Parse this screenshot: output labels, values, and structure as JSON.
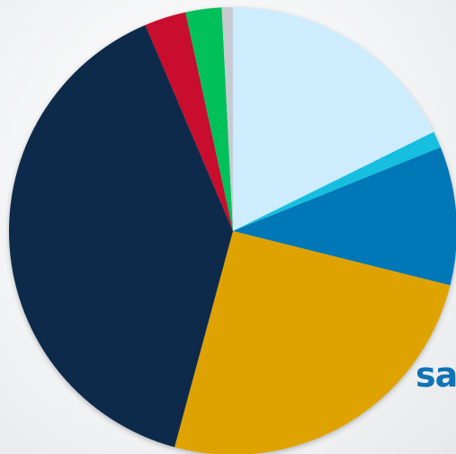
{
  "chart_data": {
    "type": "pie",
    "title": "",
    "slices": [
      {
        "value": 17.7,
        "color": "#cdecfd"
      },
      {
        "value": 1.2,
        "color": "#16bfe0"
      },
      {
        "value": 10.0,
        "color": "#0077b6"
      },
      {
        "value": 25.3,
        "color": "#dfa306"
      },
      {
        "value": 39.4,
        "color": "#0f2b4b"
      },
      {
        "value": 3.0,
        "color": "#c8102e"
      },
      {
        "value": 2.6,
        "color": "#00c05a"
      },
      {
        "value": 0.8,
        "color": "#c4ccd2"
      }
    ]
  },
  "partial_text": "sa"
}
